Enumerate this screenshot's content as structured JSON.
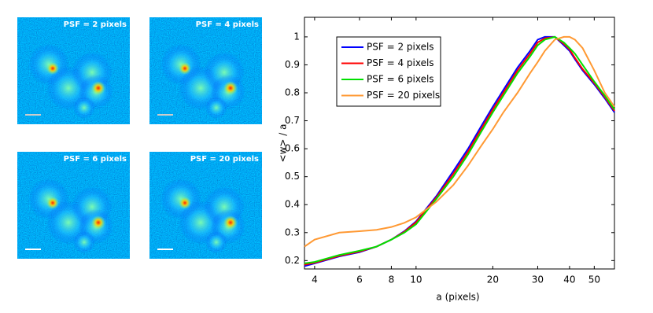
{
  "images": {
    "labels": [
      "PSF = 2 pixels",
      "PSF = 4 pixels",
      "PSF = 6 pixels",
      "PSF = 20 pixels"
    ]
  },
  "chart_data": {
    "type": "line",
    "xlabel": "a (pixels)",
    "ylabel": "<w> / a",
    "x": [
      3.65,
      4,
      5,
      6,
      7,
      8,
      9,
      10,
      12,
      14,
      16,
      18,
      20,
      22,
      25,
      28,
      30,
      32,
      35,
      38,
      40,
      42,
      45,
      50,
      55,
      60
    ],
    "series": [
      {
        "name": "PSF = 2 pixels",
        "color": "#0000ff",
        "values": [
          0.18,
          0.19,
          0.215,
          0.23,
          0.25,
          0.275,
          0.305,
          0.34,
          0.43,
          0.52,
          0.6,
          0.68,
          0.75,
          0.81,
          0.89,
          0.95,
          0.99,
          1.0,
          1.0,
          0.97,
          0.95,
          0.92,
          0.88,
          0.83,
          0.78,
          0.73
        ]
      },
      {
        "name": "PSF = 4 pixels",
        "color": "#ff0000",
        "values": [
          0.185,
          0.192,
          0.217,
          0.232,
          0.25,
          0.275,
          0.303,
          0.337,
          0.425,
          0.51,
          0.59,
          0.67,
          0.74,
          0.8,
          0.88,
          0.94,
          0.98,
          0.995,
          1.0,
          0.975,
          0.955,
          0.925,
          0.885,
          0.835,
          0.785,
          0.735
        ]
      },
      {
        "name": "PSF = 6 pixels",
        "color": "#00e000",
        "values": [
          0.19,
          0.195,
          0.22,
          0.235,
          0.25,
          0.275,
          0.3,
          0.33,
          0.42,
          0.5,
          0.58,
          0.66,
          0.73,
          0.79,
          0.87,
          0.93,
          0.97,
          0.99,
          1.0,
          0.98,
          0.96,
          0.94,
          0.9,
          0.84,
          0.79,
          0.74
        ]
      },
      {
        "name": "PSF = 20 pixels",
        "color": "#ff9933",
        "values": [
          0.25,
          0.275,
          0.3,
          0.305,
          0.31,
          0.32,
          0.335,
          0.355,
          0.41,
          0.47,
          0.54,
          0.61,
          0.67,
          0.73,
          0.8,
          0.87,
          0.91,
          0.95,
          0.99,
          1.0,
          1.0,
          0.99,
          0.96,
          0.88,
          0.8,
          0.75
        ]
      }
    ],
    "xlim": [
      3.65,
      60
    ],
    "xticks": [
      4,
      6,
      8,
      10,
      20,
      30,
      40,
      50
    ],
    "xscale": "log",
    "ylim": [
      0.17,
      1.07
    ],
    "yticks": [
      0.2,
      0.3,
      0.4,
      0.5,
      0.6,
      0.7,
      0.8,
      0.9,
      1
    ],
    "legend": "upper left"
  }
}
